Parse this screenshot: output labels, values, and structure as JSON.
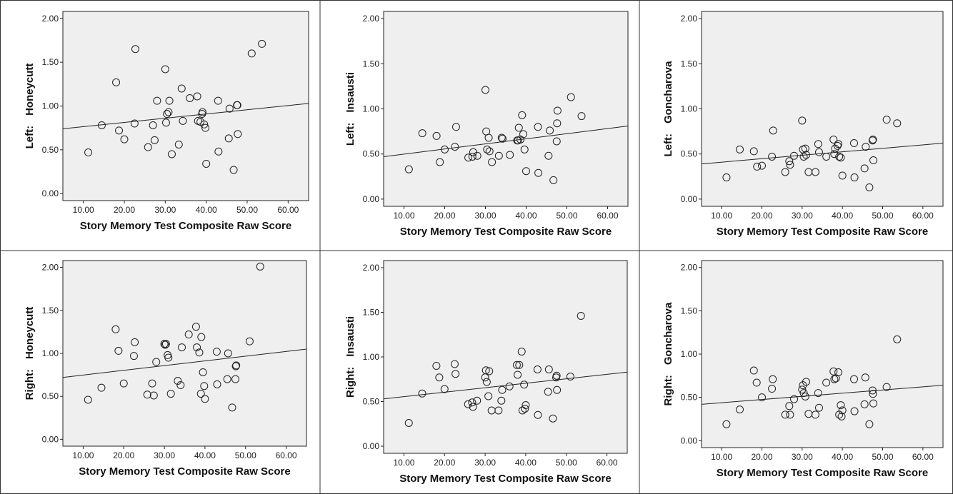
{
  "chart_data": [
    {
      "type": "scatter",
      "ylabel_side": "Left:",
      "ylabel_name": "Honeycutt",
      "xlabel": "Story Memory Test Composite Raw Score",
      "xlim": [
        5,
        65
      ],
      "ylim": [
        -0.08,
        2.08
      ],
      "x_ticks": [
        "10.00",
        "20.00",
        "30.00",
        "40.00",
        "50.00",
        "60.00"
      ],
      "y_ticks": [
        "0.00",
        "0.50",
        "1.00",
        "1.50",
        "2.00"
      ],
      "fit_line": [
        [
          5,
          0.74
        ],
        [
          65,
          1.03
        ]
      ],
      "points": [
        [
          11.2,
          0.47
        ],
        [
          14.5,
          0.78
        ],
        [
          18.0,
          1.27
        ],
        [
          18.7,
          0.72
        ],
        [
          20.0,
          0.62
        ],
        [
          22.5,
          0.8
        ],
        [
          22.7,
          1.65
        ],
        [
          25.8,
          0.53
        ],
        [
          27.0,
          0.78
        ],
        [
          27.4,
          0.61
        ],
        [
          28.0,
          1.06
        ],
        [
          30.0,
          1.42
        ],
        [
          30.2,
          0.81
        ],
        [
          30.4,
          0.91
        ],
        [
          30.8,
          0.93
        ],
        [
          31.0,
          1.06
        ],
        [
          31.6,
          0.45
        ],
        [
          33.3,
          0.56
        ],
        [
          34.0,
          1.2
        ],
        [
          34.3,
          0.83
        ],
        [
          36.0,
          1.09
        ],
        [
          37.8,
          1.11
        ],
        [
          38.0,
          0.83
        ],
        [
          38.6,
          0.82
        ],
        [
          39.0,
          0.91
        ],
        [
          39.1,
          0.93
        ],
        [
          39.5,
          0.79
        ],
        [
          39.8,
          0.75
        ],
        [
          40.0,
          0.34
        ],
        [
          42.9,
          1.06
        ],
        [
          43.0,
          0.48
        ],
        [
          45.5,
          0.63
        ],
        [
          45.7,
          0.97
        ],
        [
          46.7,
          0.27
        ],
        [
          47.5,
          1.01
        ],
        [
          47.6,
          1.01
        ],
        [
          47.7,
          0.68
        ],
        [
          51.1,
          1.6
        ],
        [
          53.6,
          1.71
        ]
      ]
    },
    {
      "type": "scatter",
      "ylabel_side": "Left:",
      "ylabel_name": "Insausti",
      "xlabel": "Story Memory Test Composite Raw Score",
      "xlim": [
        5,
        65
      ],
      "ylim": [
        -0.08,
        2.08
      ],
      "x_ticks": [
        "10.00",
        "20.00",
        "30.00",
        "40.00",
        "50.00",
        "60.00"
      ],
      "y_ticks": [
        "0.00",
        "0.50",
        "1.00",
        "1.50",
        "2.00"
      ],
      "fit_line": [
        [
          5,
          0.47
        ],
        [
          65,
          0.81
        ]
      ],
      "points": [
        [
          11.2,
          0.33
        ],
        [
          14.5,
          0.73
        ],
        [
          18.0,
          0.7
        ],
        [
          18.8,
          0.41
        ],
        [
          20.0,
          0.55
        ],
        [
          22.5,
          0.58
        ],
        [
          22.8,
          0.8
        ],
        [
          25.8,
          0.46
        ],
        [
          26.8,
          0.47
        ],
        [
          27.0,
          0.52
        ],
        [
          28.0,
          0.48
        ],
        [
          30.0,
          1.21
        ],
        [
          30.2,
          0.75
        ],
        [
          30.4,
          0.55
        ],
        [
          30.8,
          0.68
        ],
        [
          31.0,
          0.53
        ],
        [
          31.6,
          0.41
        ],
        [
          33.3,
          0.48
        ],
        [
          34.0,
          0.68
        ],
        [
          34.2,
          0.67
        ],
        [
          36.0,
          0.49
        ],
        [
          37.8,
          0.65
        ],
        [
          38.0,
          0.65
        ],
        [
          38.2,
          0.79
        ],
        [
          38.6,
          0.66
        ],
        [
          39.0,
          0.93
        ],
        [
          39.3,
          0.72
        ],
        [
          39.6,
          0.55
        ],
        [
          40.0,
          0.31
        ],
        [
          42.9,
          0.8
        ],
        [
          43.0,
          0.29
        ],
        [
          45.5,
          0.48
        ],
        [
          45.8,
          0.76
        ],
        [
          46.7,
          0.21
        ],
        [
          47.5,
          0.64
        ],
        [
          47.6,
          0.84
        ],
        [
          47.7,
          0.98
        ],
        [
          51.0,
          1.13
        ],
        [
          53.6,
          0.92
        ]
      ]
    },
    {
      "type": "scatter",
      "ylabel_side": "Left:",
      "ylabel_name": "Goncharova",
      "xlabel": "Story Memory Test Composite Raw Score",
      "xlim": [
        5,
        65
      ],
      "ylim": [
        -0.08,
        2.08
      ],
      "x_ticks": [
        "10.00",
        "20.00",
        "30.00",
        "40.00",
        "50.00",
        "60.00"
      ],
      "y_ticks": [
        "0.00",
        "0.50",
        "1.00",
        "1.50",
        "2.00"
      ],
      "fit_line": [
        [
          5,
          0.39
        ],
        [
          65,
          0.62
        ]
      ],
      "points": [
        [
          11.2,
          0.24
        ],
        [
          14.5,
          0.55
        ],
        [
          18.0,
          0.53
        ],
        [
          18.8,
          0.36
        ],
        [
          20.0,
          0.37
        ],
        [
          22.5,
          0.47
        ],
        [
          22.8,
          0.76
        ],
        [
          25.8,
          0.3
        ],
        [
          26.8,
          0.42
        ],
        [
          27.0,
          0.38
        ],
        [
          28.0,
          0.48
        ],
        [
          30.0,
          0.87
        ],
        [
          30.2,
          0.55
        ],
        [
          30.4,
          0.47
        ],
        [
          30.8,
          0.56
        ],
        [
          31.0,
          0.49
        ],
        [
          31.6,
          0.3
        ],
        [
          33.3,
          0.3
        ],
        [
          34.0,
          0.61
        ],
        [
          34.2,
          0.52
        ],
        [
          36.0,
          0.47
        ],
        [
          37.8,
          0.66
        ],
        [
          38.0,
          0.5
        ],
        [
          38.2,
          0.56
        ],
        [
          38.8,
          0.59
        ],
        [
          39.0,
          0.61
        ],
        [
          39.2,
          0.47
        ],
        [
          39.6,
          0.46
        ],
        [
          40.0,
          0.26
        ],
        [
          42.9,
          0.62
        ],
        [
          43.0,
          0.24
        ],
        [
          45.5,
          0.34
        ],
        [
          45.8,
          0.58
        ],
        [
          46.7,
          0.13
        ],
        [
          47.5,
          0.65
        ],
        [
          47.6,
          0.66
        ],
        [
          47.7,
          0.43
        ],
        [
          51.0,
          0.88
        ],
        [
          53.6,
          0.84
        ]
      ]
    },
    {
      "type": "scatter",
      "ylabel_side": "Right:",
      "ylabel_name": "Honeycutt",
      "xlabel": "Story Memory Test Composite Raw Score",
      "xlim": [
        5,
        65
      ],
      "ylim": [
        -0.08,
        2.08
      ],
      "x_ticks": [
        "10.00",
        "20.00",
        "30.00",
        "40.00",
        "50.00",
        "60.00"
      ],
      "y_ticks": [
        "0.00",
        "0.50",
        "1.00",
        "1.50",
        "2.00"
      ],
      "fit_line": [
        [
          5,
          0.72
        ],
        [
          65,
          1.05
        ]
      ],
      "points": [
        [
          11.2,
          0.46
        ],
        [
          14.5,
          0.6
        ],
        [
          18.0,
          1.28
        ],
        [
          18.7,
          1.03
        ],
        [
          20.0,
          0.65
        ],
        [
          22.5,
          0.97
        ],
        [
          22.7,
          1.13
        ],
        [
          25.8,
          0.52
        ],
        [
          27.0,
          0.65
        ],
        [
          27.4,
          0.51
        ],
        [
          28.0,
          0.9
        ],
        [
          30.0,
          1.11
        ],
        [
          30.2,
          1.1
        ],
        [
          30.4,
          1.11
        ],
        [
          30.8,
          0.98
        ],
        [
          31.0,
          0.95
        ],
        [
          31.6,
          0.53
        ],
        [
          33.3,
          0.68
        ],
        [
          34.0,
          0.63
        ],
        [
          34.3,
          1.07
        ],
        [
          36.0,
          1.22
        ],
        [
          37.8,
          1.31
        ],
        [
          38.0,
          1.07
        ],
        [
          38.6,
          1.01
        ],
        [
          39.0,
          0.53
        ],
        [
          39.1,
          1.19
        ],
        [
          39.5,
          0.78
        ],
        [
          39.8,
          0.62
        ],
        [
          40.0,
          0.47
        ],
        [
          42.9,
          1.02
        ],
        [
          43.0,
          0.64
        ],
        [
          45.5,
          0.7
        ],
        [
          45.7,
          1.0
        ],
        [
          46.7,
          0.37
        ],
        [
          47.5,
          0.7
        ],
        [
          47.6,
          0.85
        ],
        [
          47.7,
          0.86
        ],
        [
          51.0,
          1.14
        ],
        [
          53.6,
          2.01
        ]
      ]
    },
    {
      "type": "scatter",
      "ylabel_side": "Right:",
      "ylabel_name": "Insausti",
      "xlabel": "Story Memory Test Composite Raw Score",
      "xlim": [
        5,
        65
      ],
      "ylim": [
        -0.08,
        2.08
      ],
      "x_ticks": [
        "10.00",
        "20.00",
        "30.00",
        "40.00",
        "50.00",
        "60.00"
      ],
      "y_ticks": [
        "0.00",
        "0.50",
        "1.00",
        "1.50",
        "2.00"
      ],
      "fit_line": [
        [
          5,
          0.53
        ],
        [
          65,
          0.83
        ]
      ],
      "points": [
        [
          11.2,
          0.26
        ],
        [
          14.5,
          0.59
        ],
        [
          18.0,
          0.9
        ],
        [
          18.7,
          0.77
        ],
        [
          20.0,
          0.64
        ],
        [
          22.5,
          0.92
        ],
        [
          22.7,
          0.81
        ],
        [
          25.8,
          0.47
        ],
        [
          26.8,
          0.49
        ],
        [
          27.0,
          0.44
        ],
        [
          28.0,
          0.51
        ],
        [
          30.0,
          0.77
        ],
        [
          30.2,
          0.85
        ],
        [
          30.4,
          0.72
        ],
        [
          30.8,
          0.56
        ],
        [
          31.0,
          0.84
        ],
        [
          31.6,
          0.4
        ],
        [
          33.3,
          0.4
        ],
        [
          34.0,
          0.51
        ],
        [
          34.2,
          0.63
        ],
        [
          36.0,
          0.67
        ],
        [
          37.8,
          0.91
        ],
        [
          38.0,
          0.8
        ],
        [
          38.4,
          0.91
        ],
        [
          39.0,
          1.06
        ],
        [
          39.2,
          0.4
        ],
        [
          39.6,
          0.69
        ],
        [
          39.8,
          0.42
        ],
        [
          40.0,
          0.46
        ],
        [
          42.9,
          0.86
        ],
        [
          43.0,
          0.35
        ],
        [
          45.5,
          0.61
        ],
        [
          45.7,
          0.86
        ],
        [
          46.7,
          0.31
        ],
        [
          47.5,
          0.77
        ],
        [
          47.6,
          0.79
        ],
        [
          47.7,
          0.63
        ],
        [
          51.0,
          0.78
        ],
        [
          53.6,
          1.46
        ]
      ]
    },
    {
      "type": "scatter",
      "ylabel_side": "Right:",
      "ylabel_name": "Goncharova",
      "xlabel": "Story Memory Test Composite Raw Score",
      "xlim": [
        5,
        65
      ],
      "ylim": [
        -0.08,
        2.08
      ],
      "x_ticks": [
        "10.00",
        "20.00",
        "30.00",
        "40.00",
        "50.00",
        "60.00"
      ],
      "y_ticks": [
        "0.00",
        "0.50",
        "1.00",
        "1.50",
        "2.00"
      ],
      "fit_line": [
        [
          5,
          0.42
        ],
        [
          65,
          0.64
        ]
      ],
      "points": [
        [
          11.2,
          0.19
        ],
        [
          14.5,
          0.36
        ],
        [
          18.0,
          0.81
        ],
        [
          18.7,
          0.67
        ],
        [
          20.0,
          0.5
        ],
        [
          22.5,
          0.6
        ],
        [
          22.7,
          0.71
        ],
        [
          25.8,
          0.3
        ],
        [
          26.8,
          0.4
        ],
        [
          27.0,
          0.3
        ],
        [
          28.0,
          0.48
        ],
        [
          30.0,
          0.59
        ],
        [
          30.2,
          0.64
        ],
        [
          30.4,
          0.55
        ],
        [
          30.8,
          0.51
        ],
        [
          31.0,
          0.68
        ],
        [
          31.6,
          0.31
        ],
        [
          33.3,
          0.3
        ],
        [
          34.0,
          0.55
        ],
        [
          34.2,
          0.38
        ],
        [
          36.0,
          0.67
        ],
        [
          37.8,
          0.8
        ],
        [
          38.0,
          0.71
        ],
        [
          38.4,
          0.72
        ],
        [
          39.0,
          0.79
        ],
        [
          39.2,
          0.3
        ],
        [
          39.6,
          0.41
        ],
        [
          39.8,
          0.28
        ],
        [
          40.0,
          0.35
        ],
        [
          42.9,
          0.71
        ],
        [
          43.0,
          0.34
        ],
        [
          45.5,
          0.42
        ],
        [
          45.7,
          0.73
        ],
        [
          46.7,
          0.19
        ],
        [
          47.5,
          0.58
        ],
        [
          47.6,
          0.54
        ],
        [
          47.7,
          0.43
        ],
        [
          51.0,
          0.62
        ],
        [
          53.6,
          1.17
        ]
      ]
    }
  ]
}
